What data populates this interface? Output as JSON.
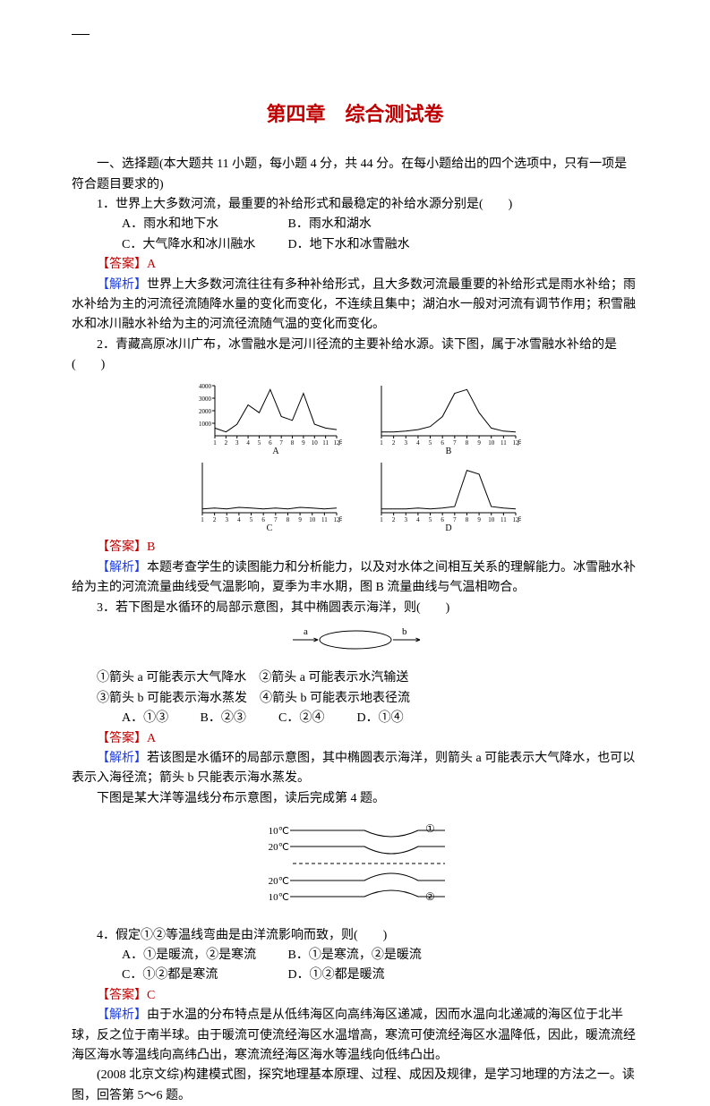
{
  "title": "第四章　综合测试卷",
  "intro": "一、选择题(本大题共 11 小题，每小题 4 分，共 44 分。在每小题给出的四个选项中，只有一项是符合题目要求的)",
  "q1": {
    "stem": "1．世界上大多数河流，最重要的补给形式和最稳定的补给水源分别是(　　)",
    "A": "A．雨水和地下水",
    "B": "B．雨水和湖水",
    "C": "C．大气降水和冰川融水",
    "D": "D．地下水和冰雪融水",
    "ans": "【答案】A",
    "exp": "【解析】世界上大多数河流往往有多种补给形式，且大多数河流最重要的补给形式是雨水补给；雨水补给为主的河流径流随降水量的变化而变化，不连续且集中；湖泊水一般对河流有调节作用；积雪融水和冰川融水补给为主的河流径流随气温的变化而变化。"
  },
  "q2": {
    "stem": "2．青藏高原冰川广布，冰雪融水是河川径流的主要补给水源。读下图，属于冰雪融水补给的是(　　)",
    "ans": "【答案】B",
    "exp": "【解析】本题考查学生的读图能力和分析能力，以及对水体之间相互关系的理解能力。冰雪融水补给为主的河流流量曲线受气温影响，夏季为丰水期，图 B 流量曲线与气温相吻合。"
  },
  "charts4": {
    "w": 170,
    "h": 70,
    "axis_color": "#000000",
    "line_color": "#000000",
    "ytick_color": "#000000",
    "months": [
      "1",
      "2",
      "3",
      "4",
      "5",
      "6",
      "7",
      "8",
      "9",
      "10",
      "11",
      "12"
    ],
    "yvals_A": [
      "4000",
      "3000",
      "2000",
      "1000"
    ],
    "monthlabel": "月",
    "A": {
      "name": "A",
      "points": [
        10,
        5,
        15,
        40,
        30,
        60,
        25,
        20,
        55,
        15,
        10,
        8
      ]
    },
    "B": {
      "name": "B",
      "points": [
        5,
        5,
        6,
        8,
        12,
        25,
        55,
        60,
        30,
        10,
        6,
        5
      ]
    },
    "C": {
      "name": "C",
      "points": [
        5,
        6,
        5,
        7,
        6,
        5,
        6,
        5,
        7,
        6,
        5,
        6
      ]
    },
    "D": {
      "name": "D",
      "points": [
        5,
        5,
        5,
        6,
        5,
        6,
        8,
        55,
        50,
        8,
        6,
        5
      ]
    }
  },
  "q3": {
    "stem": "3．若下图是水循环的局部示意图，其中椭圆表示海洋，则(　　)",
    "o1": "①箭头 a 可能表示大气降水　②箭头 a 可能表示水汽输送",
    "o2": "③箭头 b 可能表示海水蒸发　④箭头 b 可能表示地表径流",
    "A": "A．①③",
    "B": "B．②③",
    "C": "C．②④",
    "D": "D．①④",
    "ans": "【答案】A",
    "exp": "【解析】若该图是水循环的局部示意图，其中椭圆表示海洋，则箭头 a 可能表示大气降水，也可以表示入海径流；箭头 b 只能表示海水蒸发。",
    "tail": "下图是某大洋等温线分布示意图，读后完成第 4 题。"
  },
  "ellipse": {
    "a_label": "a",
    "b_label": "b",
    "stroke": "#000000"
  },
  "iso": {
    "labels": [
      "10℃",
      "20℃",
      "20℃",
      "10℃"
    ],
    "marks": [
      "①",
      "②"
    ],
    "stroke": "#000000",
    "dash_color": "#000000"
  },
  "q4": {
    "stem": "4．假定①②等温线弯曲是由洋流影响而致，则(　　)",
    "A": "A．①是暖流，②是寒流",
    "B": "B．①是寒流，②是暖流",
    "C": "C．①②都是寒流",
    "D": "D．①②都是暖流",
    "ans": "【答案】C",
    "exp": "【解析】由于水温的分布特点是从低纬海区向高纬海区递减，因而水温向北递减的海区位于北半球，反之位于南半球。由于暖流可使流经海区水温增高，寒流可使流经海区水温降低，因此，暖流流经海区海水等温线向高纬凸出，寒流流经海区海水等温线向低纬凸出。"
  },
  "q56": {
    "intro": "(2008 北京文综)构建模式图，探究地理基本原理、过程、成因及规律，是学习地理的方法之一。读图，回答第 5～6 题。"
  },
  "labels": {
    "answer": "答案",
    "explain": "解析"
  }
}
